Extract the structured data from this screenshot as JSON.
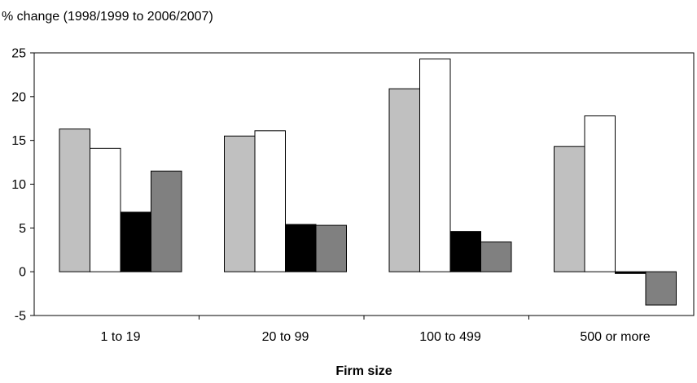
{
  "chart_data": {
    "type": "bar",
    "title": "",
    "ylabel": "% change (1998/1999 to 2006/2007)",
    "xlabel": "Firm size",
    "categories": [
      "1 to 19",
      "20 to 99",
      "100 to 499",
      "500 or more"
    ],
    "ylim": [
      -5,
      25
    ],
    "yticks": [
      -5,
      0,
      5,
      10,
      15,
      20,
      25
    ],
    "ytick_labels": [
      "-5",
      "0",
      "5",
      "10",
      "15",
      "20",
      "25"
    ],
    "grid": false,
    "legend": "none",
    "series": [
      {
        "color": "#c0c0c0",
        "values": [
          16.3,
          15.5,
          20.9,
          14.3
        ]
      },
      {
        "color": "#ffffff",
        "values": [
          14.1,
          16.1,
          24.3,
          17.8
        ]
      },
      {
        "color": "#000000",
        "values": [
          6.8,
          5.4,
          4.6,
          -0.2
        ]
      },
      {
        "color": "#808080",
        "values": [
          11.5,
          5.3,
          3.4,
          -3.8
        ]
      }
    ]
  }
}
